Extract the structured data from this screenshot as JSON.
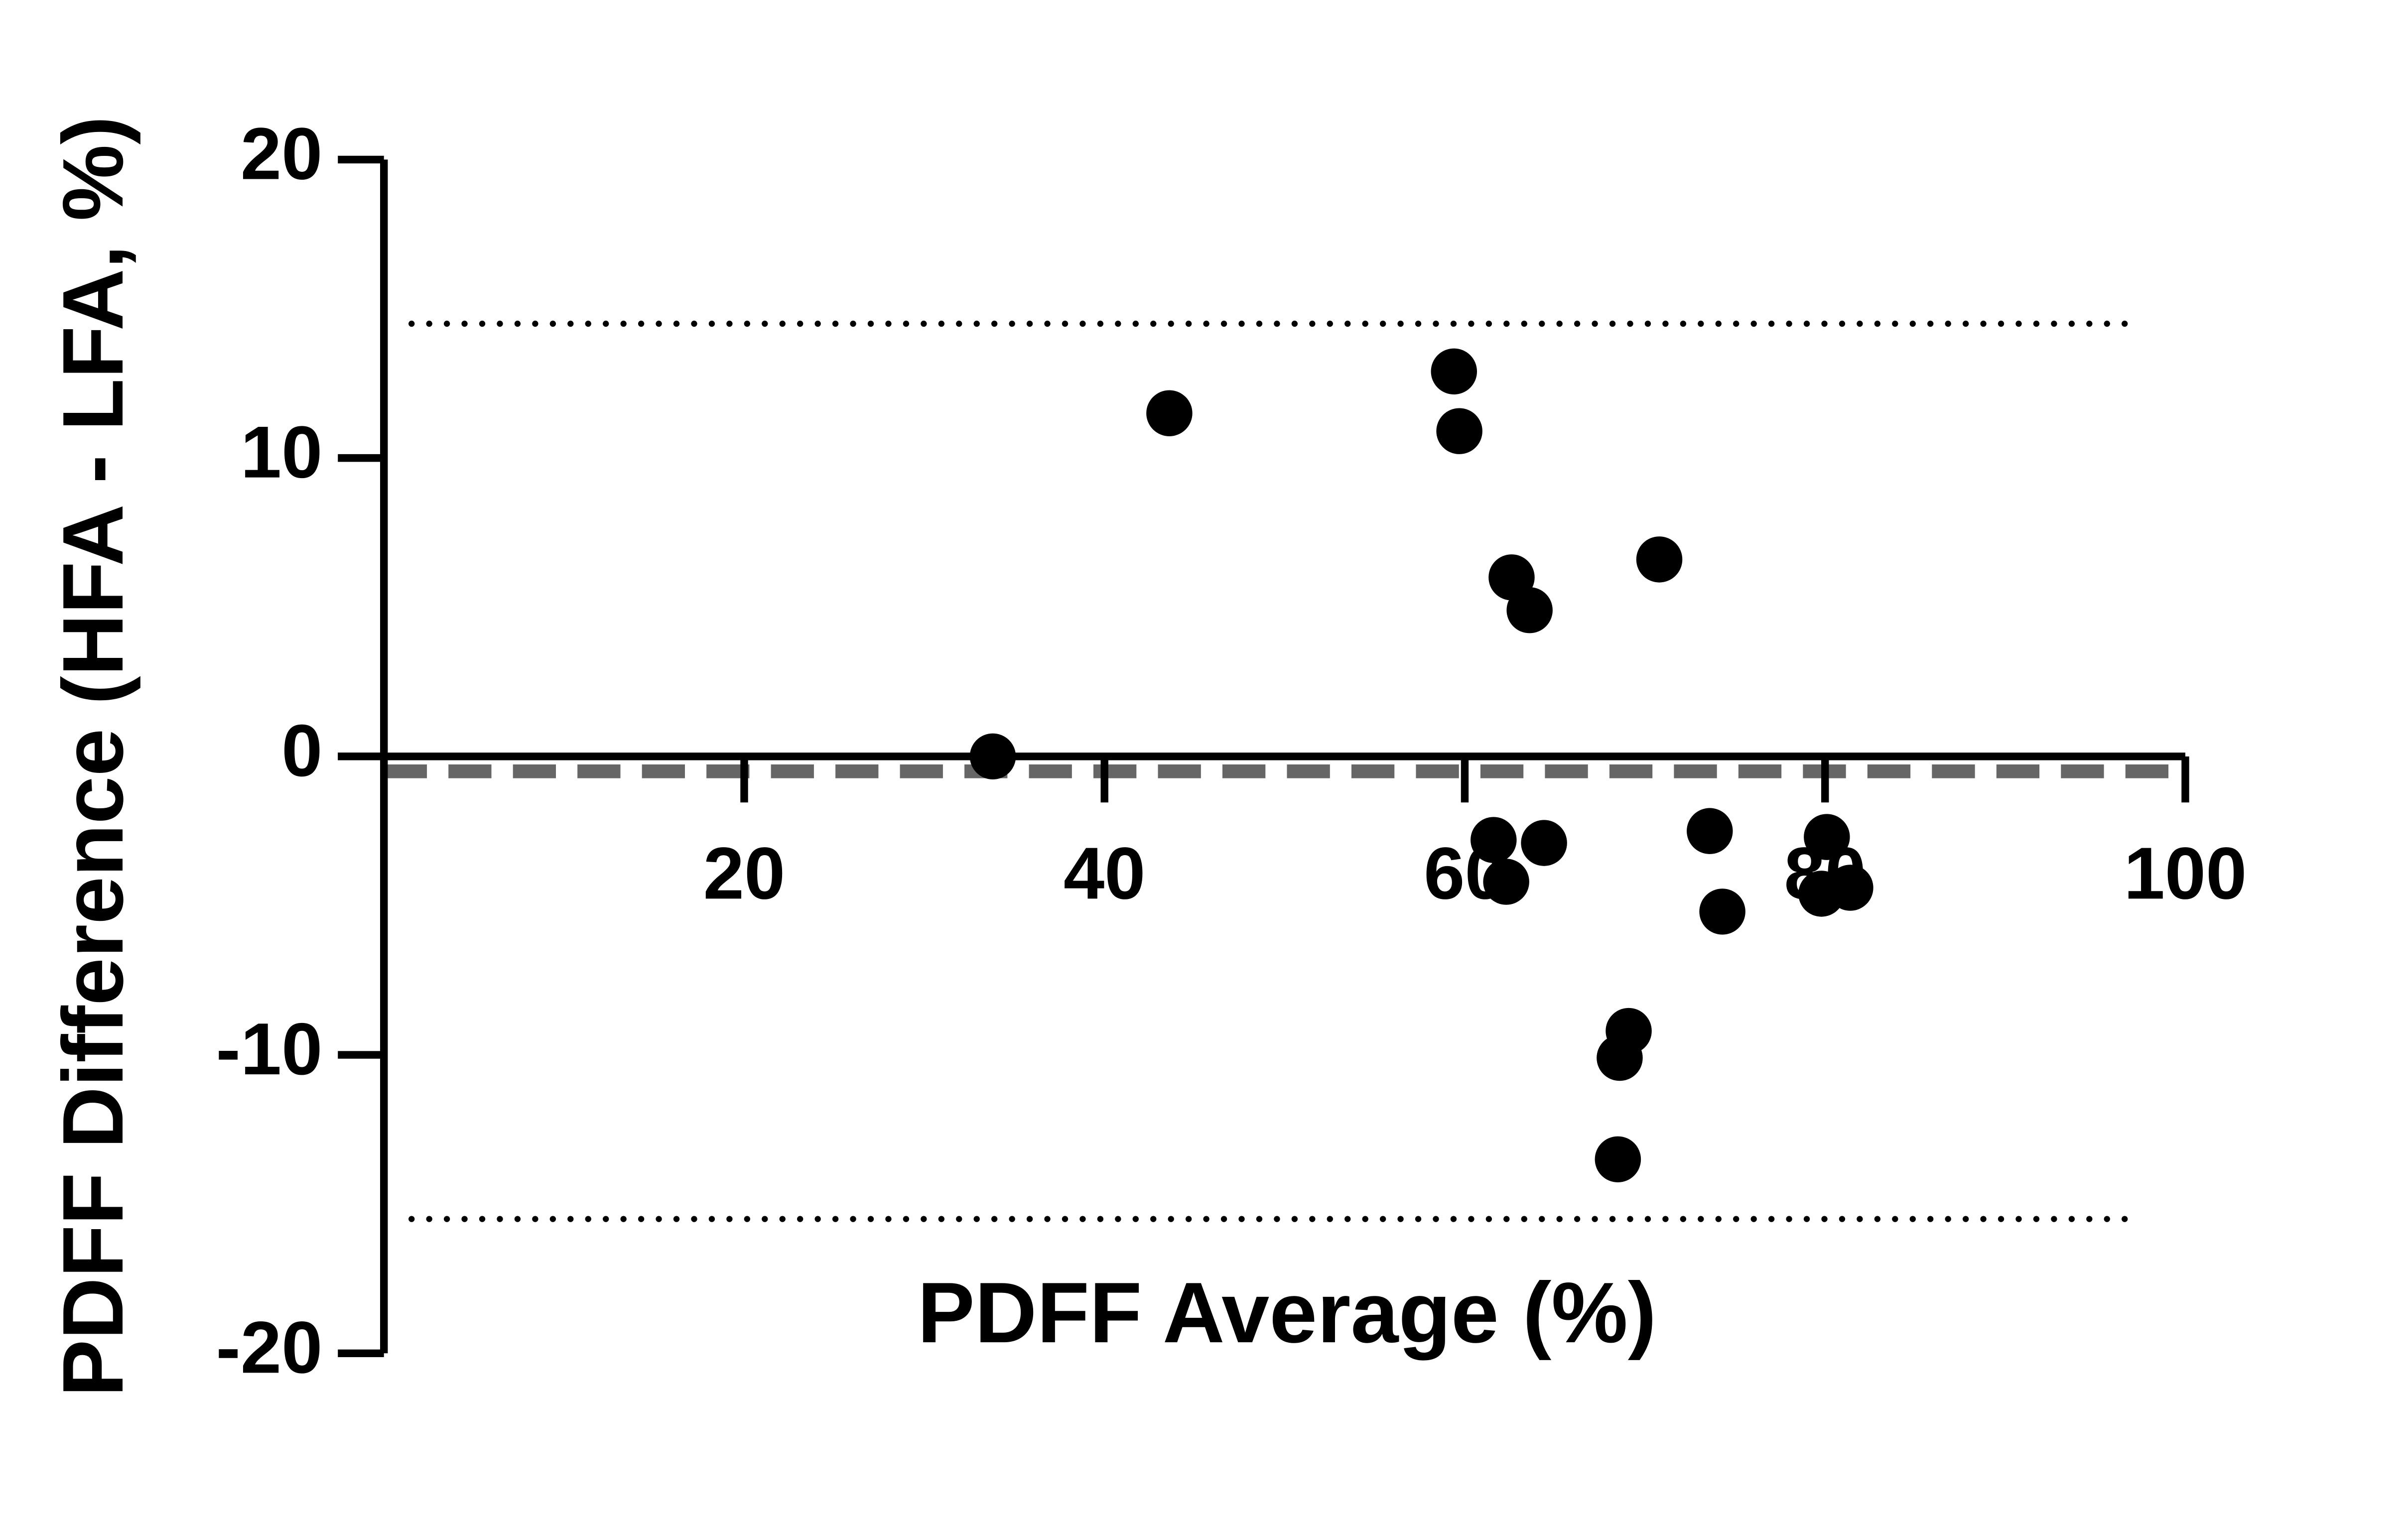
{
  "chart_data": {
    "type": "scatter",
    "x_label": "PDFF Average (%)",
    "y_label": "PDFF Difference (HFA - LFA, %)",
    "xlim": [
      0,
      100
    ],
    "xticks": [
      20,
      40,
      60,
      80,
      100
    ],
    "ylim": [
      -20,
      20
    ],
    "yticks": [
      20,
      10,
      0,
      -10,
      -20
    ],
    "series": [
      {
        "color": "#000000",
        "x": [
          33.8,
          43.6,
          59.4,
          59.7,
          62.6,
          63.6,
          70.8,
          61.6,
          62.3,
          64.4,
          69.1,
          68.6,
          68.5,
          73.6,
          74.3,
          80.1,
          79.8,
          81.4
        ],
        "y": [
          0,
          11.5,
          12.9,
          10.9,
          6.0,
          4.9,
          6.6,
          -2.8,
          -4.2,
          -2.9,
          -9.2,
          -10.1,
          -13.5,
          -2.5,
          -5.2,
          -2.7,
          -4.6,
          -4.4
        ]
      }
    ],
    "hlines": [
      {
        "value": 14.5,
        "style": "dotted",
        "color": "#000000"
      },
      {
        "value": -0.5,
        "style": "dashed",
        "color": "#666666"
      },
      {
        "value": -15.5,
        "style": "dotted",
        "color": "#000000"
      }
    ]
  }
}
